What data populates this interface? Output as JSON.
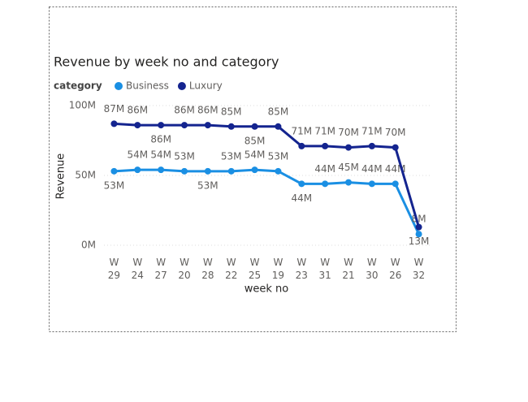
{
  "chart_data": {
    "type": "line",
    "title": "Revenue by week no and category",
    "legend_title": "category",
    "x_label": "week no",
    "y_label": "Revenue",
    "categories": [
      "W 29",
      "W 24",
      "W 27",
      "W 20",
      "W 28",
      "W 22",
      "W 25",
      "W 19",
      "W 23",
      "W 31",
      "W 21",
      "W 30",
      "W 26",
      "W 32"
    ],
    "series": [
      {
        "name": "Business",
        "color": "#1a8fe3",
        "values": [
          53000000,
          54000000,
          54000000,
          53000000,
          53000000,
          53000000,
          54000000,
          53000000,
          44000000,
          44000000,
          45000000,
          44000000,
          44000000,
          8000000
        ],
        "value_labels": [
          "53M",
          "54M",
          "54M",
          "53M",
          "53M",
          "53M",
          "54M",
          "53M",
          "44M",
          "44M",
          "45M",
          "44M",
          "44M",
          "8M"
        ]
      },
      {
        "name": "Luxury",
        "color": "#14248f",
        "values": [
          87000000,
          86000000,
          86000000,
          86000000,
          86000000,
          85000000,
          85000000,
          85000000,
          71000000,
          71000000,
          70000000,
          71000000,
          70000000,
          13000000
        ],
        "value_labels": [
          "87M",
          "86M",
          "86M",
          "86M",
          "86M",
          "85M",
          "85M",
          "85M",
          "71M",
          "71M",
          "70M",
          "71M",
          "70M",
          "13M"
        ]
      }
    ],
    "ylim": [
      0,
      100000000
    ],
    "yticks": [
      {
        "value": 0,
        "label": "0M"
      },
      {
        "value": 50000000,
        "label": "50M"
      },
      {
        "value": 100000000,
        "label": "100M"
      }
    ],
    "grid": true
  }
}
